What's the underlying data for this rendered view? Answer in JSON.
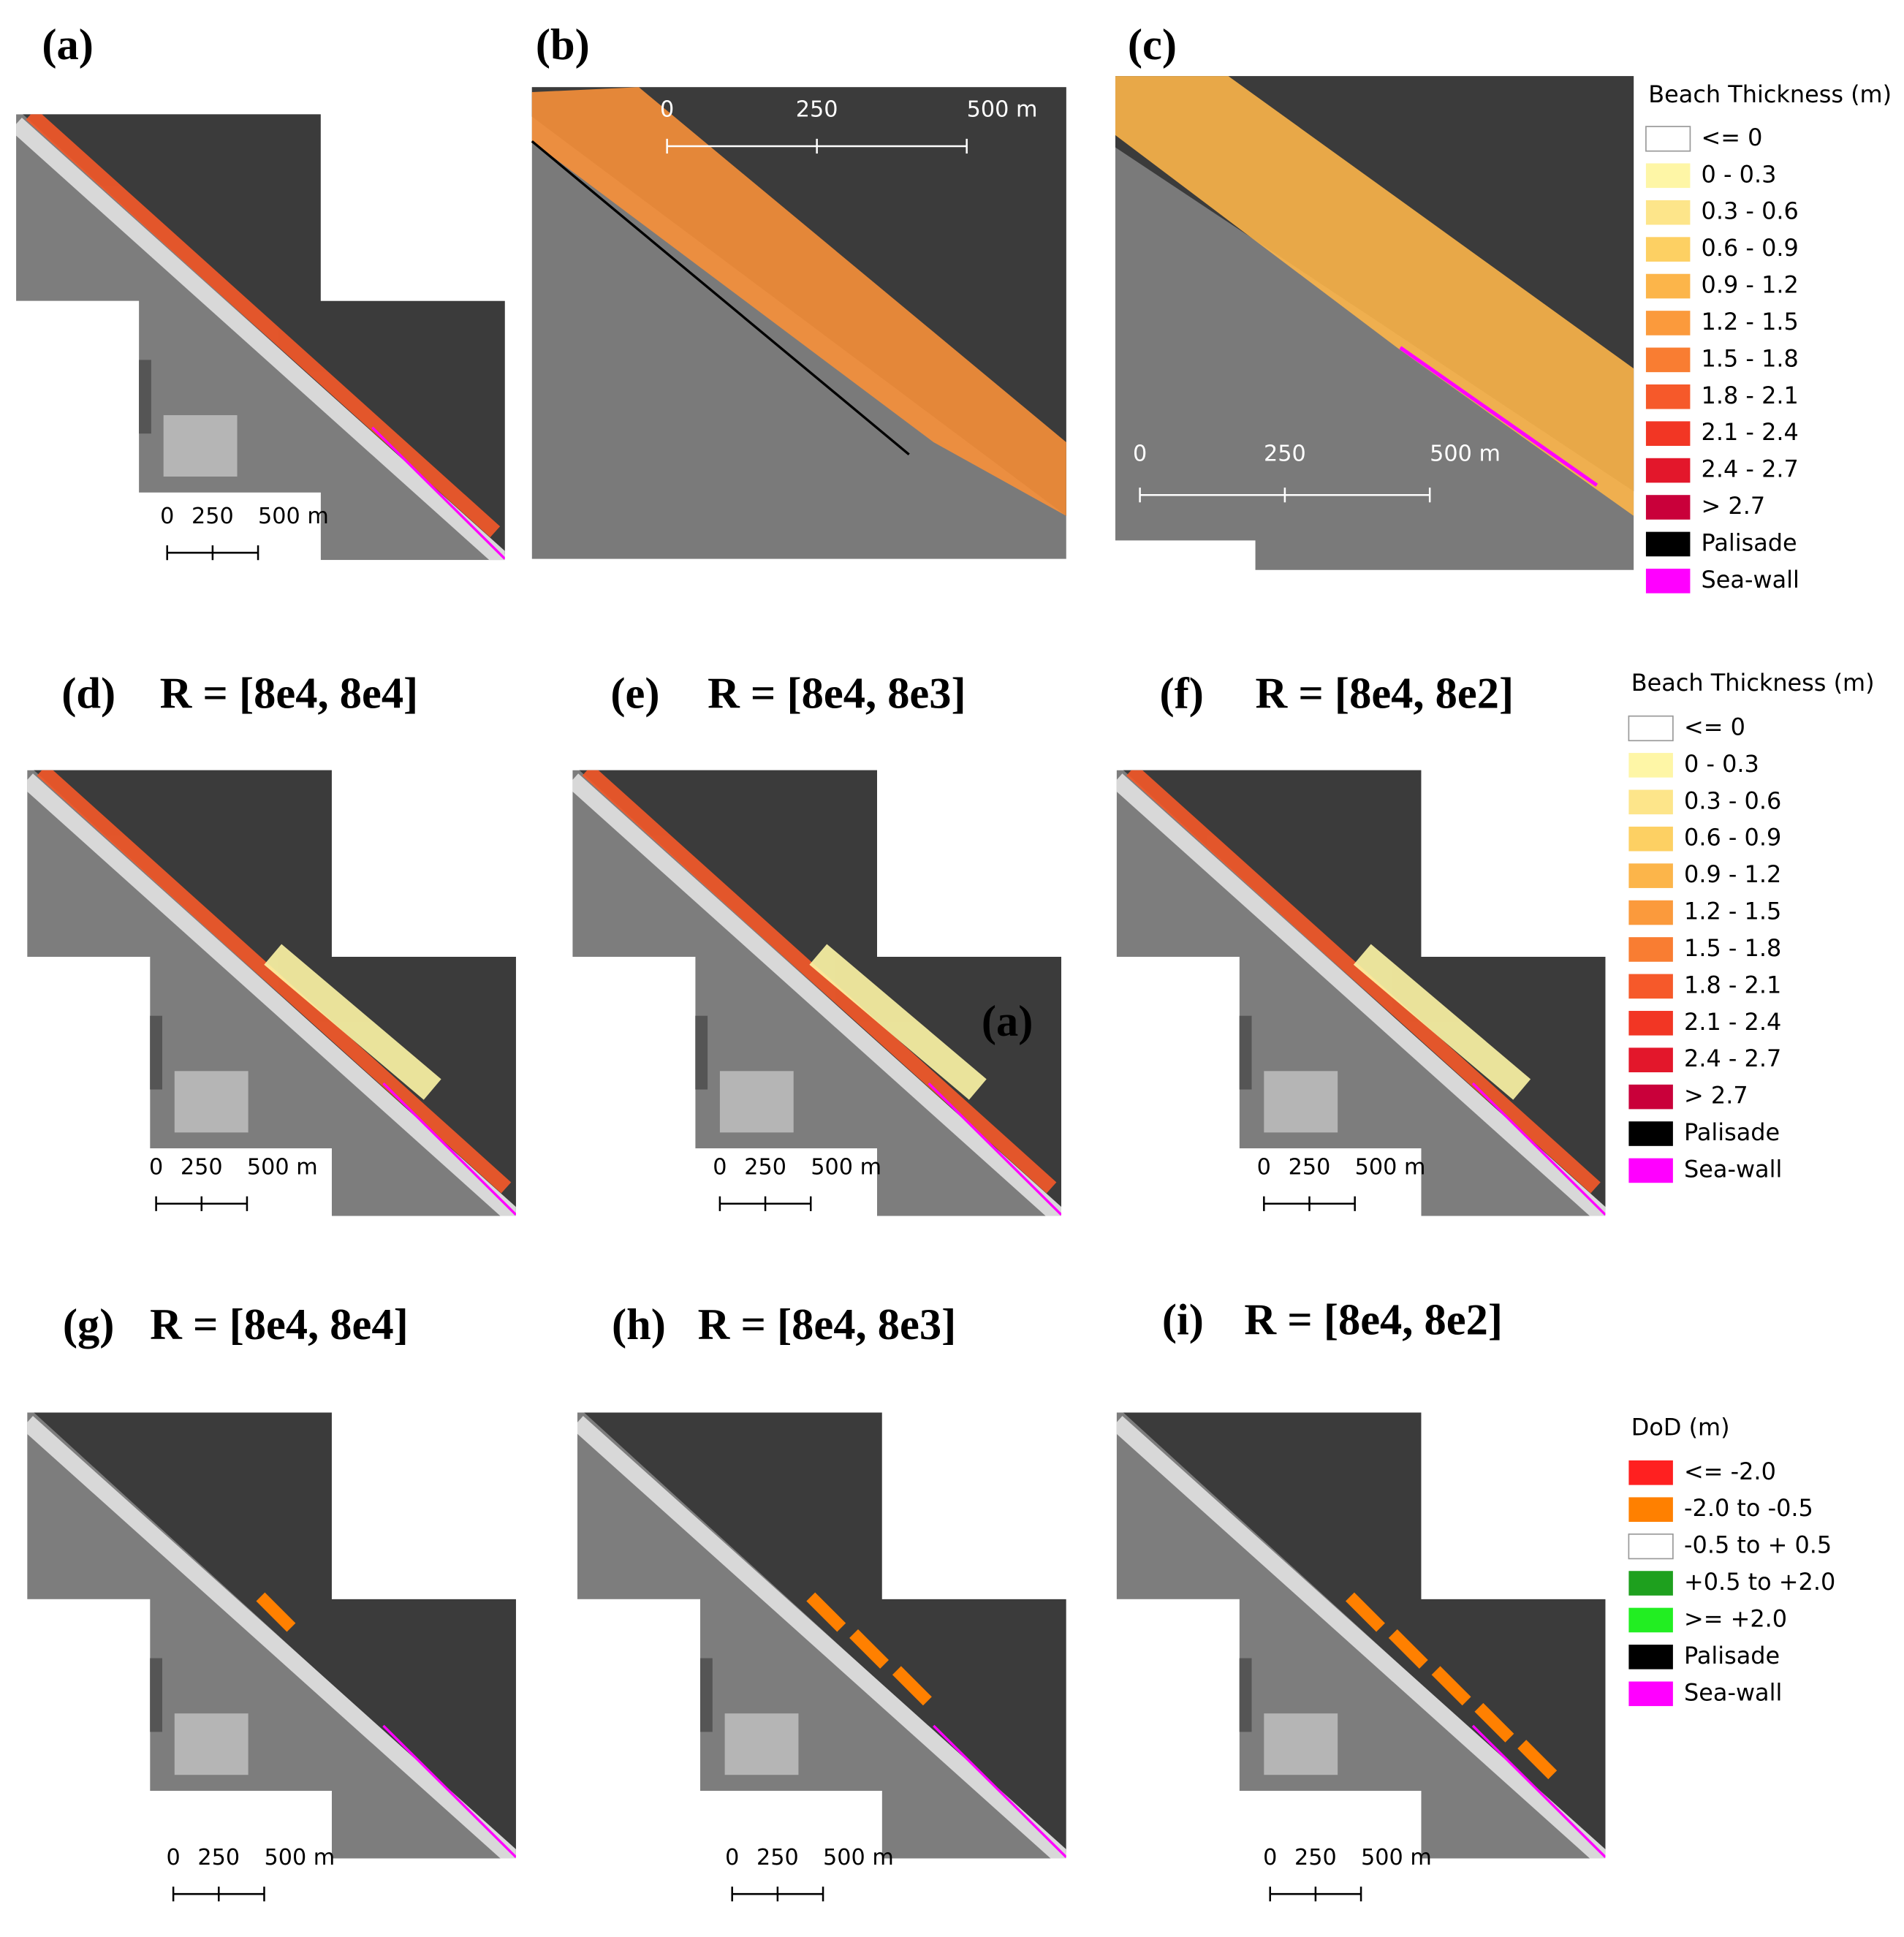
{
  "panels": [
    {
      "label": "(a)",
      "scale": [
        "0",
        "250",
        "500 m"
      ]
    },
    {
      "label": "(b)",
      "scale": [
        "0",
        "250",
        "500 m"
      ]
    },
    {
      "label": "(c)",
      "scale": [
        "0",
        "250",
        "500 m"
      ]
    },
    {
      "label": "(d)",
      "title": "R = [8e4, 8e4]",
      "scale": [
        "0",
        "250",
        "500 m"
      ]
    },
    {
      "label": "(e)",
      "title": "R = [8e4, 8e3]",
      "scale": [
        "0",
        "250",
        "500 m"
      ],
      "overlay_label": "(a)"
    },
    {
      "label": "(f)",
      "title": "R = [8e4, 8e2]",
      "scale": [
        "0",
        "250",
        "500 m"
      ]
    },
    {
      "label": "(g)",
      "title": "R = [8e4, 8e4]",
      "scale": [
        "0",
        "250",
        "500 m"
      ]
    },
    {
      "label": "(h)",
      "title": "R = [8e4, 8e3]",
      "scale": [
        "0",
        "250",
        "500 m"
      ]
    },
    {
      "label": "(i)",
      "title": "R = [8e4, 8e2]",
      "scale": [
        "0",
        "250",
        "500 m"
      ]
    }
  ],
  "legends": [
    {
      "title": "Beach Thickness (m)",
      "items": [
        {
          "label": "<= 0",
          "color": "#ffffff"
        },
        {
          "label": "0 - 0.3",
          "color": "#fef6a6"
        },
        {
          "label": "0.3 - 0.6",
          "color": "#fde58a"
        },
        {
          "label": "0.6 - 0.9",
          "color": "#fdd063"
        },
        {
          "label": "0.9 - 1.2",
          "color": "#fcb54a"
        },
        {
          "label": "1.2 - 1.5",
          "color": "#fb9a3c"
        },
        {
          "label": "1.5 - 1.8",
          "color": "#f97d32"
        },
        {
          "label": "1.8 - 2.1",
          "color": "#f6592a"
        },
        {
          "label": "2.1 - 2.4",
          "color": "#f23624"
        },
        {
          "label": "2.4 - 2.7",
          "color": "#e3172b"
        },
        {
          "label": "> 2.7",
          "color": "#c9003a"
        },
        {
          "label": "Palisade",
          "color": "#000000"
        },
        {
          "label": "Sea-wall",
          "color": "#ff00ff"
        }
      ]
    },
    {
      "title": "Beach Thickness (m)",
      "items": [
        {
          "label": "<= 0",
          "color": "#ffffff"
        },
        {
          "label": "0 - 0.3",
          "color": "#fef6a6"
        },
        {
          "label": "0.3 - 0.6",
          "color": "#fde58a"
        },
        {
          "label": "0.6 - 0.9",
          "color": "#fdd063"
        },
        {
          "label": "0.9 - 1.2",
          "color": "#fcb54a"
        },
        {
          "label": "1.2 - 1.5",
          "color": "#fb9a3c"
        },
        {
          "label": "1.5 - 1.8",
          "color": "#f97d32"
        },
        {
          "label": "1.8 - 2.1",
          "color": "#f6592a"
        },
        {
          "label": "2.1 - 2.4",
          "color": "#f23624"
        },
        {
          "label": "2.4 - 2.7",
          "color": "#e3172b"
        },
        {
          "label": "> 2.7",
          "color": "#c9003a"
        },
        {
          "label": "Palisade",
          "color": "#000000"
        },
        {
          "label": "Sea-wall",
          "color": "#ff00ff"
        }
      ]
    },
    {
      "title": "DoD (m)",
      "items": [
        {
          "label": "<= -2.0",
          "color": "#ff2020"
        },
        {
          "label": "-2.0 to -0.5",
          "color": "#ff8000"
        },
        {
          "label": "-0.5 to + 0.5",
          "color": "#ffffff"
        },
        {
          "label": "+0.5 to +2.0",
          "color": "#1ea01e"
        },
        {
          "label": ">= +2.0",
          "color": "#22ee22"
        },
        {
          "label": "Palisade",
          "color": "#000000"
        },
        {
          "label": "Sea-wall",
          "color": "#ff00ff"
        }
      ]
    }
  ]
}
